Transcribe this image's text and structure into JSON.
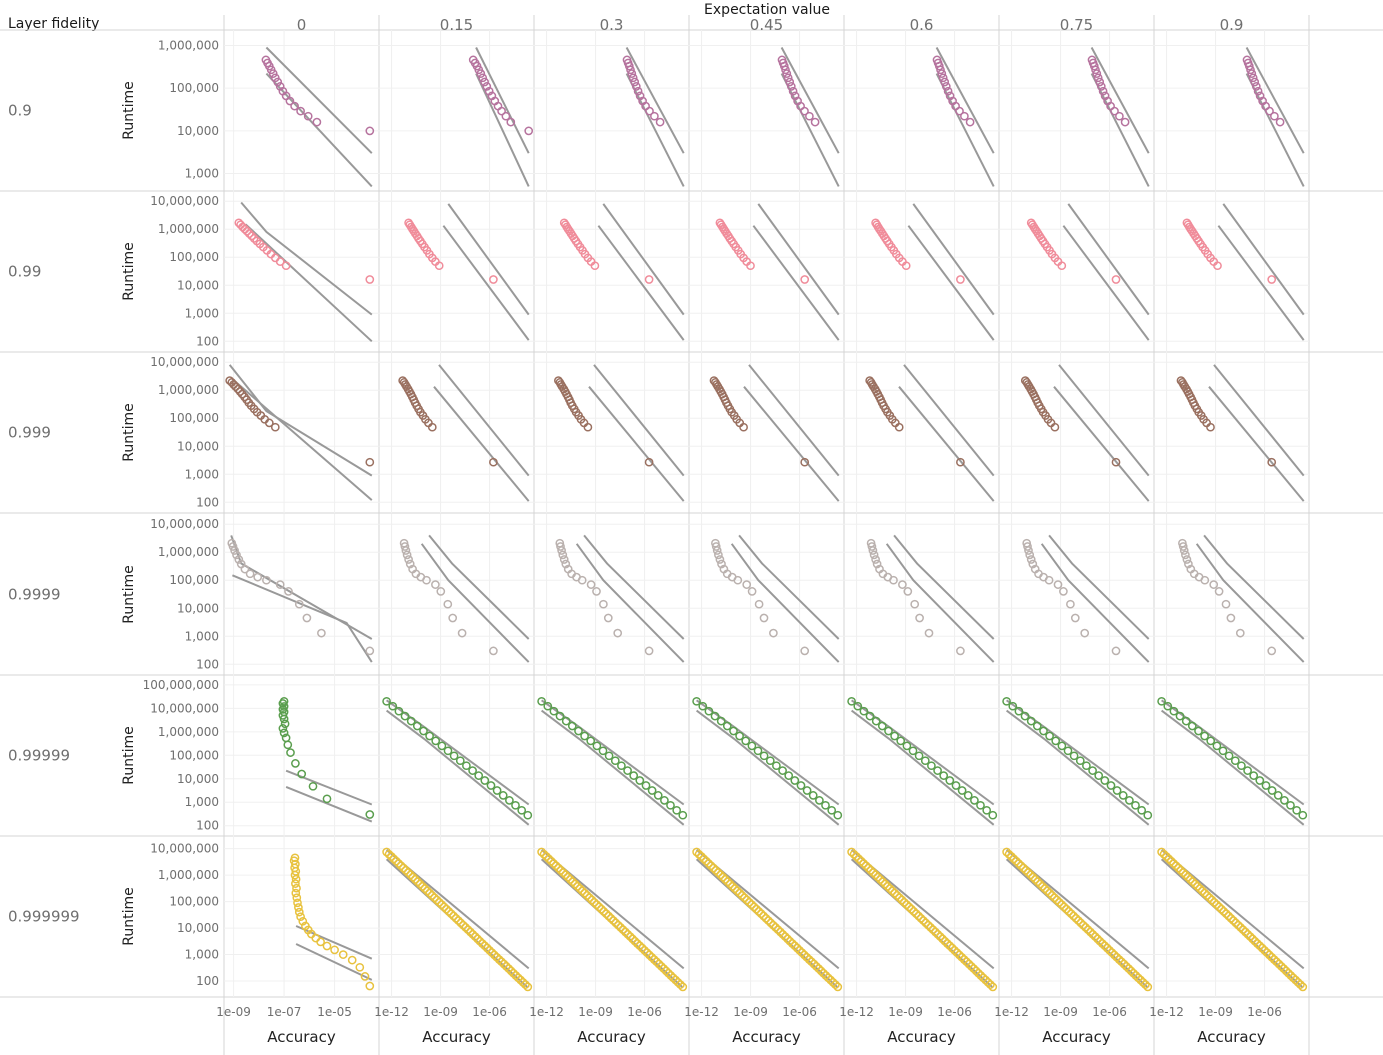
{
  "header": {
    "title": "Expectation value",
    "row_header": "Layer fidelity",
    "y_axis_title": "Runtime",
    "x_axis_title": "Accuracy"
  },
  "colors": {
    "grid": "#f0f0f0",
    "frame": "#d4d4d4",
    "line": "#999999",
    "text": "#6f6f6f",
    "title": "#1a1a1a"
  },
  "chart_data": {
    "type": "scatter",
    "layout": "small-multiples",
    "title": "Expectation value",
    "xlabel": "Accuracy",
    "ylabel": "Runtime",
    "x_scale": "log",
    "y_scale": "log",
    "columns": [
      "0",
      "0.15",
      "0.3",
      "0.45",
      "0.6",
      "0.75",
      "0.9"
    ],
    "rows": [
      {
        "label": "0.9",
        "color": "#b6739e",
        "y_ticks": [
          "1,000",
          "10,000",
          "100,000",
          "1,000,000"
        ],
        "ylim": [
          600,
          1500000
        ]
      },
      {
        "label": "0.99",
        "color": "#f08c9a",
        "y_ticks": [
          "100",
          "1,000",
          "10,000",
          "100,000",
          "1,000,000",
          "10,000,000"
        ],
        "ylim": [
          80,
          12000000
        ]
      },
      {
        "label": "0.999",
        "color": "#9a7060",
        "y_ticks": [
          "100",
          "1,000",
          "10,000",
          "100,000",
          "1,000,000",
          "10,000,000"
        ],
        "ylim": [
          80,
          12000000
        ]
      },
      {
        "label": "0.9999",
        "color": "#bab1ae",
        "y_ticks": [
          "100",
          "1,000",
          "10,000",
          "100,000",
          "1,000,000",
          "10,000,000"
        ],
        "ylim": [
          80,
          12000000
        ]
      },
      {
        "label": "0.99999",
        "color": "#5a9e4e",
        "y_ticks": [
          "100",
          "1,000",
          "10,000",
          "100,000",
          "1,000,000",
          "10,000,000",
          "100,000,000"
        ],
        "ylim": [
          80,
          120000000
        ]
      },
      {
        "label": "0.999999",
        "color": "#e8c23e",
        "y_ticks": [
          "100",
          "1,000",
          "10,000",
          "100,000",
          "1,000,000",
          "10,000,000"
        ],
        "ylim": [
          50,
          15000000
        ]
      }
    ],
    "x_ticks_col0": [
      "1e-09",
      "1e-07",
      "1e-05"
    ],
    "x_ticks_other": [
      "1e-12",
      "1e-09",
      "1e-06"
    ],
    "xlim_col0": [
      6e-10,
      0.0004
    ],
    "xlim_other": [
      3e-13,
      0.0003
    ],
    "grid": true,
    "legend": "none",
    "series_description": "Each panel: open-circle scatter of runtime vs accuracy plus two grey bounding lines; values estimated from the figure.",
    "panels": [
      {
        "row": 0,
        "col": 0,
        "points": [
          [
            1.9e-08,
            460000
          ],
          [
            2.2e-08,
            390000
          ],
          [
            2.6e-08,
            330000
          ],
          [
            3.1e-08,
            270000
          ],
          [
            3.7e-08,
            220000
          ],
          [
            4.5e-08,
            175000
          ],
          [
            5.6e-08,
            140000
          ],
          [
            7e-08,
            110000
          ],
          [
            9e-08,
            85000
          ],
          [
            1.2e-07,
            66000
          ],
          [
            1.7e-07,
            50000
          ],
          [
            2.6e-07,
            38000
          ],
          [
            4.5e-07,
            29000
          ],
          [
            9e-07,
            22000
          ],
          [
            2e-06,
            16000
          ],
          [
            0.00025,
            10000
          ]
        ],
        "lines": [
          [
            [
              2e-08,
              900000
            ],
            [
              0.0003,
              3000
            ]
          ],
          [
            [
              2e-08,
              220000
            ],
            [
              0.0003,
              500
            ]
          ]
        ]
      },
      {
        "row": 1,
        "col": 0,
        "points": [
          [
            1.6e-09,
            1700000
          ],
          [
            1.9e-09,
            1450000
          ],
          [
            2.3e-09,
            1200000
          ],
          [
            2.8e-09,
            1000000
          ],
          [
            3.4e-09,
            850000
          ],
          [
            4.2e-09,
            700000
          ],
          [
            5.2e-09,
            580000
          ],
          [
            6.5e-09,
            470000
          ],
          [
            8.3e-09,
            380000
          ],
          [
            1.1e-08,
            300000
          ],
          [
            1.5e-08,
            230000
          ],
          [
            2.1e-08,
            175000
          ],
          [
            3e-08,
            130000
          ],
          [
            4.5e-08,
            95000
          ],
          [
            7e-08,
            70000
          ],
          [
            1.2e-07,
            50000
          ],
          [
            0.00025,
            16000
          ]
        ],
        "lines": [
          [
            [
              2e-09,
              9000000
            ],
            [
              2e-08,
              800000
            ],
            [
              0.0003,
              900
            ]
          ],
          [
            [
              3e-09,
              1500000
            ],
            [
              0.0003,
              100
            ]
          ]
        ]
      },
      {
        "row": 2,
        "col": 0,
        "points": [
          [
            7e-10,
            2200000
          ],
          [
            8.5e-10,
            1900000
          ],
          [
            1e-09,
            1600000
          ],
          [
            1.2e-09,
            1350000
          ],
          [
            1.5e-09,
            1100000
          ],
          [
            1.8e-09,
            900000
          ],
          [
            2.2e-09,
            730000
          ],
          [
            2.7e-09,
            580000
          ],
          [
            3.3e-09,
            460000
          ],
          [
            4e-09,
            360000
          ],
          [
            5e-09,
            280000
          ],
          [
            6.5e-09,
            215000
          ],
          [
            8.5e-09,
            165000
          ],
          [
            1.2e-08,
            125000
          ],
          [
            1.7e-08,
            92000
          ],
          [
            2.6e-08,
            68000
          ],
          [
            4.5e-08,
            48000
          ],
          [
            0.00025,
            2700
          ]
        ],
        "lines": [
          [
            [
              7e-10,
              8000000
            ],
            [
              2e-08,
              180000
            ],
            [
              0.0003,
              900
            ]
          ],
          [
            [
              9e-10,
              2500000
            ],
            [
              0.0003,
              120
            ]
          ]
        ]
      },
      {
        "row": 3,
        "col": 0,
        "points": [
          [
            8.5e-10,
            2100000
          ],
          [
            9.5e-10,
            1600000
          ],
          [
            1.1e-09,
            1150000
          ],
          [
            1.3e-09,
            800000
          ],
          [
            1.6e-09,
            550000
          ],
          [
            2e-09,
            380000
          ],
          [
            2.8e-09,
            250000
          ],
          [
            4.5e-09,
            170000
          ],
          [
            9e-09,
            130000
          ],
          [
            2e-08,
            100000
          ],
          [
            7e-08,
            70000
          ],
          [
            1.5e-07,
            40000
          ],
          [
            4e-07,
            14000
          ],
          [
            8e-07,
            4500
          ],
          [
            3e-06,
            1300
          ],
          [
            0.00025,
            300
          ]
        ],
        "lines": [
          [
            [
              8e-10,
              4000000
            ],
            [
              2e-09,
              400000
            ],
            [
              0.0003,
              800
            ]
          ],
          [
            [
              9e-10,
              150000
            ],
            [
              3e-05,
              3000
            ],
            [
              0.0003,
              120
            ]
          ]
        ]
      },
      {
        "row": 4,
        "col": 0,
        "points": [
          [
            1e-07,
            20000000
          ],
          [
            9e-08,
            16000000
          ],
          [
            1e-07,
            12000000
          ],
          [
            9e-08,
            9000000
          ],
          [
            1e-07,
            7000000
          ],
          [
            9e-08,
            5000000
          ],
          [
            1e-07,
            3500000
          ],
          [
            1.1e-07,
            2200000
          ],
          [
            9e-08,
            1400000
          ],
          [
            1e-07,
            900000
          ],
          [
            1.2e-07,
            550000
          ],
          [
            1.4e-07,
            280000
          ],
          [
            1.8e-07,
            130000
          ],
          [
            2.8e-07,
            45000
          ],
          [
            5e-07,
            16000
          ],
          [
            1.4e-06,
            4800
          ],
          [
            5e-06,
            1400
          ],
          [
            0.00025,
            300
          ]
        ],
        "lines": [
          [
            [
              1.2e-07,
              22000
            ],
            [
              0.0003,
              800
            ]
          ],
          [
            [
              1.2e-07,
              4500
            ],
            [
              0.0003,
              150
            ]
          ]
        ]
      },
      {
        "row": 5,
        "col": 0,
        "points": [
          [
            2.7e-07,
            4500000
          ],
          [
            2.5e-07,
            3500000
          ],
          [
            2.8e-07,
            2600000
          ],
          [
            2.6e-07,
            1900000
          ],
          [
            2.9e-07,
            1400000
          ],
          [
            2.7e-07,
            1000000
          ],
          [
            3e-07,
            700000
          ],
          [
            2.8e-07,
            480000
          ],
          [
            3.1e-07,
            320000
          ],
          [
            2.9e-07,
            210000
          ],
          [
            3.2e-07,
            140000
          ],
          [
            3.4e-07,
            90000
          ],
          [
            3.7e-07,
            60000
          ],
          [
            4e-07,
            40000
          ],
          [
            4.5e-07,
            27000
          ],
          [
            5.5e-07,
            18000
          ],
          [
            7e-07,
            12000
          ],
          [
            9e-07,
            8500
          ],
          [
            1.2e-06,
            6000
          ],
          [
            1.8e-06,
            4200
          ],
          [
            2.8e-06,
            3000
          ],
          [
            5e-06,
            2100
          ],
          [
            1e-05,
            1500
          ],
          [
            2.2e-05,
            1000
          ],
          [
            5e-05,
            620
          ],
          [
            0.0001,
            330
          ],
          [
            0.00016,
            150
          ],
          [
            0.00025,
            65
          ]
        ],
        "lines": [
          [
            [
              3e-07,
              12000
            ],
            [
              0.0003,
              700
            ]
          ],
          [
            [
              3e-07,
              2500
            ],
            [
              0.0003,
              110
            ]
          ]
        ]
      },
      {
        "row": 0,
        "col": 1,
        "points": [
          [
            1e-07,
            460000
          ],
          [
            1.3e-07,
            390000
          ],
          [
            1.7e-07,
            330000
          ],
          [
            2.2e-07,
            270000
          ],
          [
            2.9e-07,
            220000
          ],
          [
            3.8e-07,
            175000
          ],
          [
            5e-07,
            140000
          ],
          [
            6.8e-07,
            110000
          ],
          [
            9.5e-07,
            85000
          ],
          [
            1.4e-06,
            66000
          ],
          [
            2.1e-06,
            50000
          ],
          [
            3.3e-06,
            38000
          ],
          [
            5.5e-06,
            29000
          ],
          [
            1e-05,
            22000
          ],
          [
            2e-05,
            16000
          ],
          [
            0.00025,
            10000
          ]
        ],
        "lines": [
          [
            [
              1.5e-07,
              900000
            ],
            [
              0.00025,
              3000
            ]
          ],
          [
            [
              1.5e-07,
              220000
            ],
            [
              0.00025,
              500
            ]
          ]
        ]
      }
    ]
  }
}
